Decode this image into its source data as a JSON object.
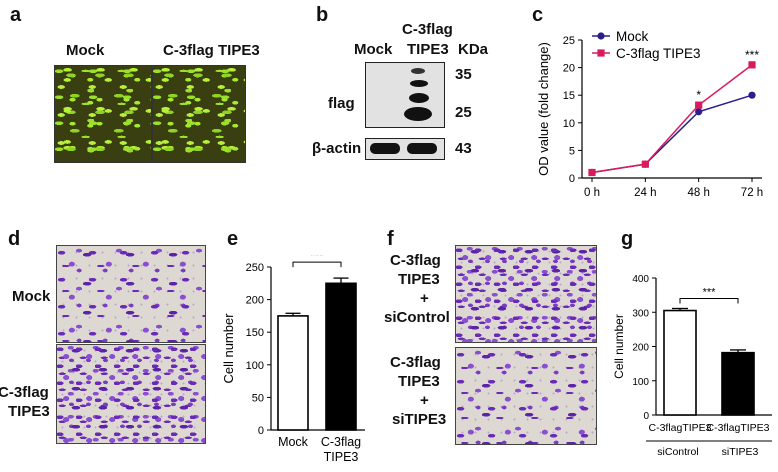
{
  "panels": {
    "a": {
      "letter": "a",
      "labels": [
        "Mock",
        "C-3flag TIPE3"
      ]
    },
    "b": {
      "letter": "b",
      "col_mock": "Mock",
      "col_flag_line1": "C-3flag",
      "col_flag_line2": "TIPE3",
      "kda": "KDa",
      "mw": [
        "35",
        "25",
        "43"
      ],
      "row_flag": "flag",
      "row_actin": "β-actin"
    },
    "c": {
      "letter": "c",
      "sig": [
        "*",
        "***"
      ]
    },
    "d": {
      "letter": "d",
      "row1": "Mock",
      "row2_line1": "C-3flag",
      "row2_line2": "TIPE3"
    },
    "e": {
      "letter": "e",
      "sig": "***",
      "x_line2": "TIPE3"
    },
    "f": {
      "letter": "f",
      "row1": [
        "C-3flag",
        "TIPE3",
        "+",
        "siControl"
      ],
      "row2": [
        "C-3flag",
        "TIPE3",
        "+",
        "siTIPE3"
      ]
    },
    "g": {
      "letter": "g",
      "sig": "***",
      "group1": "siControl",
      "group2": "siTIPE3"
    }
  },
  "chart_data": [
    {
      "type": "line",
      "panel": "c",
      "x": [
        "0 h",
        "24 h",
        "48 h",
        "72 h"
      ],
      "ylabel": "OD value (fold change)",
      "ylim": [
        0,
        25
      ],
      "yticks": [
        0,
        5,
        10,
        15,
        20,
        25
      ],
      "legend_position": "top-left",
      "series": [
        {
          "name": "Mock",
          "values": [
            1.0,
            2.5,
            12.0,
            15.0
          ],
          "color": "#2b1d8c",
          "marker": "circle"
        },
        {
          "name": "C-3flag TIPE3",
          "values": [
            1.0,
            2.5,
            13.2,
            20.5
          ],
          "color": "#d81b5e",
          "marker": "square"
        }
      ]
    },
    {
      "type": "bar",
      "panel": "e",
      "categories": [
        "Mock",
        "C-3flag"
      ],
      "values": [
        175,
        225
      ],
      "errors": [
        4,
        8
      ],
      "fills": [
        "#ffffff",
        "#000000"
      ],
      "ylabel": "Cell number",
      "ylim": [
        0,
        250
      ],
      "yticks": [
        0,
        50,
        100,
        150,
        200,
        250
      ]
    },
    {
      "type": "bar",
      "panel": "g",
      "categories": [
        "C-3flagTIPE3",
        "C-3flagTIPE3"
      ],
      "values": [
        305,
        182
      ],
      "errors": [
        6,
        8
      ],
      "fills": [
        "#ffffff",
        "#000000"
      ],
      "ylabel": "Cell number",
      "ylim": [
        0,
        400
      ],
      "yticks": [
        0,
        100,
        200,
        300,
        400
      ]
    }
  ]
}
